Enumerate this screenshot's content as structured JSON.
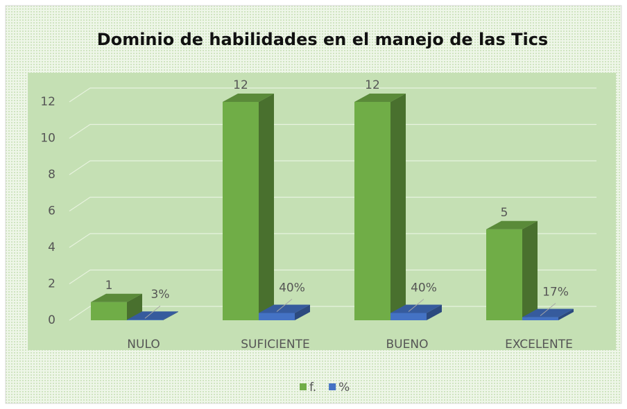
{
  "chart_data": {
    "type": "bar3d",
    "title": "Dominio de habilidades en el manejo de las Tics",
    "categories": [
      "NULO",
      "SUFICIENTE",
      "BUENO",
      "EXCELENTE"
    ],
    "series": [
      {
        "name": "f.",
        "color": "#70ad47",
        "values": [
          1,
          12,
          12,
          5
        ]
      },
      {
        "name": "%",
        "color": "#4472c4",
        "values": [
          0.03,
          0.4,
          0.4,
          0.17
        ],
        "value_labels": [
          "3%",
          "40%",
          "40%",
          "17%"
        ]
      }
    ],
    "ylim": [
      0,
      12
    ],
    "yticks": [
      0,
      2,
      4,
      6,
      8,
      10,
      12
    ],
    "grid": true,
    "legend": "bottom"
  }
}
